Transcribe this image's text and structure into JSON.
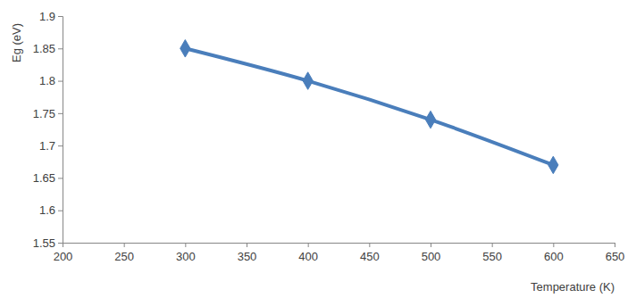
{
  "chart_data": {
    "type": "line",
    "x_label": "Temperature (K)",
    "y_label": "Eg (eV)",
    "x": [
      300,
      400,
      500,
      600
    ],
    "values": [
      1.85,
      1.8,
      1.74,
      1.67
    ],
    "color": "#4a7ebb",
    "marker": "diamond",
    "line_style": "smooth",
    "grid": false,
    "xlim": [
      200,
      650
    ],
    "xticks": [
      200,
      250,
      300,
      350,
      400,
      450,
      500,
      550,
      600,
      650
    ],
    "ylim": [
      1.55,
      1.9
    ],
    "yticks": [
      1.55,
      1.6,
      1.65,
      1.7,
      1.75,
      1.8,
      1.85,
      1.9
    ]
  }
}
